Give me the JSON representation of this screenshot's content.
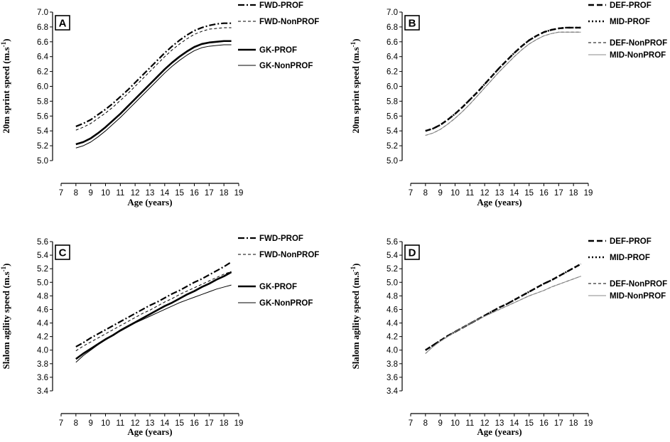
{
  "figure": {
    "xlabel": "Age (years)",
    "xticks": [
      7,
      8,
      9,
      10,
      11,
      12,
      13,
      14,
      15,
      16,
      17,
      18,
      19
    ]
  },
  "chart_data": [
    {
      "id": "A",
      "type": "line",
      "panel_label": "A",
      "ylabel": "20m sprint speed (m.s",
      "ylabel_sup": "-1",
      "ylabel_close": ")",
      "xlabel": "Age (years)",
      "xlim": [
        7,
        19
      ],
      "ylim": [
        5.0,
        7.0
      ],
      "yticks": [
        "5.0",
        "5.2",
        "5.4",
        "5.6",
        "5.8",
        "6.0",
        "6.2",
        "6.4",
        "6.6",
        "6.8",
        "7.0"
      ],
      "x": [
        8,
        8.5,
        9,
        9.5,
        10,
        10.5,
        11,
        11.5,
        12,
        12.5,
        13,
        13.5,
        14,
        14.5,
        15,
        15.5,
        16,
        16.5,
        17,
        17.5,
        18,
        18.5
      ],
      "series": [
        {
          "name": "FWD-PROF",
          "style": "dashdot-bold",
          "values": [
            5.46,
            5.5,
            5.55,
            5.62,
            5.69,
            5.77,
            5.86,
            5.95,
            6.05,
            6.15,
            6.25,
            6.35,
            6.45,
            6.54,
            6.62,
            6.69,
            6.75,
            6.79,
            6.82,
            6.84,
            6.85,
            6.85
          ]
        },
        {
          "name": "FWD-NonPROF",
          "style": "dashed-thin",
          "values": [
            5.41,
            5.45,
            5.5,
            5.57,
            5.64,
            5.72,
            5.81,
            5.9,
            6.0,
            6.1,
            6.2,
            6.3,
            6.4,
            6.49,
            6.57,
            6.64,
            6.7,
            6.74,
            6.77,
            6.78,
            6.79,
            6.79
          ]
        },
        {
          "name": "GK-PROF",
          "style": "solid-bold",
          "values": [
            5.22,
            5.25,
            5.3,
            5.37,
            5.45,
            5.54,
            5.63,
            5.73,
            5.83,
            5.93,
            6.03,
            6.13,
            6.23,
            6.32,
            6.4,
            6.47,
            6.53,
            6.57,
            6.59,
            6.6,
            6.61,
            6.61
          ]
        },
        {
          "name": "GK-NonPROF",
          "style": "solid-thin",
          "values": [
            5.17,
            5.2,
            5.25,
            5.32,
            5.4,
            5.49,
            5.58,
            5.68,
            5.78,
            5.88,
            5.98,
            6.08,
            6.18,
            6.27,
            6.35,
            6.42,
            6.48,
            6.52,
            6.54,
            6.55,
            6.56,
            6.56
          ]
        }
      ]
    },
    {
      "id": "B",
      "type": "line",
      "panel_label": "B",
      "ylabel": "20m sprint speed (m.s",
      "ylabel_sup": "-1",
      "ylabel_close": ")",
      "xlabel": "Age (years)",
      "xlim": [
        7,
        19
      ],
      "ylim": [
        5.0,
        7.0
      ],
      "yticks": [
        "5.0",
        "5.2",
        "5.4",
        "5.6",
        "5.8",
        "6.0",
        "6.2",
        "6.4",
        "6.6",
        "6.8",
        "7.0"
      ],
      "x": [
        8,
        8.5,
        9,
        9.5,
        10,
        10.5,
        11,
        11.5,
        12,
        12.5,
        13,
        13.5,
        14,
        14.5,
        15,
        15.5,
        16,
        16.5,
        17,
        17.5,
        18,
        18.5
      ],
      "series": [
        {
          "name": "DEF-PROF",
          "style": "dashed-bold",
          "values": [
            5.4,
            5.43,
            5.48,
            5.55,
            5.63,
            5.72,
            5.82,
            5.92,
            6.03,
            6.14,
            6.25,
            6.35,
            6.45,
            6.54,
            6.62,
            6.68,
            6.73,
            6.76,
            6.78,
            6.79,
            6.79,
            6.79
          ]
        },
        {
          "name": "MID-PROF",
          "style": "dotted-bold",
          "values": [
            5.4,
            5.43,
            5.48,
            5.55,
            5.63,
            5.72,
            5.82,
            5.92,
            6.03,
            6.14,
            6.25,
            6.35,
            6.45,
            6.54,
            6.62,
            6.68,
            6.73,
            6.76,
            6.78,
            6.79,
            6.79,
            6.79
          ]
        },
        {
          "name": "DEF-NonPROF",
          "style": "dashed-thin",
          "values": [
            5.34,
            5.37,
            5.42,
            5.49,
            5.57,
            5.66,
            5.76,
            5.87,
            5.98,
            6.09,
            6.2,
            6.3,
            6.4,
            6.49,
            6.57,
            6.63,
            6.68,
            6.71,
            6.73,
            6.73,
            6.73,
            6.73
          ]
        },
        {
          "name": "MID-NonPROF",
          "style": "solid-grey",
          "values": [
            5.34,
            5.37,
            5.42,
            5.49,
            5.57,
            5.66,
            5.76,
            5.87,
            5.98,
            6.09,
            6.2,
            6.3,
            6.4,
            6.49,
            6.57,
            6.63,
            6.68,
            6.71,
            6.73,
            6.73,
            6.73,
            6.73
          ]
        }
      ]
    },
    {
      "id": "C",
      "type": "line",
      "panel_label": "C",
      "ylabel": "Slalom agility speed (m.s",
      "ylabel_sup": "-1",
      "ylabel_close": ")",
      "xlabel": "Age (years)",
      "xlim": [
        7,
        19
      ],
      "ylim": [
        3.4,
        5.6
      ],
      "yticks": [
        "3.4",
        "3.6",
        "3.8",
        "4.0",
        "4.2",
        "4.4",
        "4.6",
        "4.8",
        "5.0",
        "5.2",
        "5.4",
        "5.6"
      ],
      "x": [
        8,
        8.5,
        9,
        9.5,
        10,
        10.5,
        11,
        11.5,
        12,
        12.5,
        13,
        13.5,
        14,
        14.5,
        15,
        15.5,
        16,
        16.5,
        17,
        17.5,
        18,
        18.5
      ],
      "series": [
        {
          "name": "FWD-PROF",
          "style": "dashdot-bold",
          "values": [
            4.05,
            4.11,
            4.18,
            4.24,
            4.3,
            4.36,
            4.42,
            4.48,
            4.54,
            4.6,
            4.66,
            4.71,
            4.77,
            4.83,
            4.88,
            4.94,
            5.0,
            5.05,
            5.11,
            5.17,
            5.23,
            5.3
          ]
        },
        {
          "name": "FWD-NonPROF",
          "style": "dashed-thin",
          "values": [
            3.99,
            4.06,
            4.12,
            4.18,
            4.24,
            4.3,
            4.36,
            4.42,
            4.48,
            4.54,
            4.59,
            4.65,
            4.71,
            4.76,
            4.82,
            4.87,
            4.92,
            4.97,
            5.02,
            5.07,
            5.12,
            5.16
          ]
        },
        {
          "name": "GK-PROF",
          "style": "solid-bold",
          "values": [
            3.87,
            3.95,
            4.02,
            4.09,
            4.16,
            4.22,
            4.29,
            4.35,
            4.41,
            4.47,
            4.53,
            4.59,
            4.65,
            4.7,
            4.76,
            4.82,
            4.87,
            4.93,
            4.98,
            5.04,
            5.09,
            5.15
          ]
        },
        {
          "name": "GK-NonPROF",
          "style": "solid-thin",
          "values": [
            3.82,
            3.92,
            4.0,
            4.08,
            4.15,
            4.22,
            4.28,
            4.34,
            4.4,
            4.45,
            4.5,
            4.55,
            4.6,
            4.65,
            4.7,
            4.74,
            4.78,
            4.82,
            4.86,
            4.9,
            4.93,
            4.96
          ]
        }
      ]
    },
    {
      "id": "D",
      "type": "line",
      "panel_label": "D",
      "ylabel": "Slalom agility speed (m.s",
      "ylabel_sup": "-1",
      "ylabel_close": ")",
      "xlabel": "Age (years)",
      "xlim": [
        7,
        19
      ],
      "ylim": [
        3.4,
        5.6
      ],
      "yticks": [
        "3.4",
        "3.6",
        "3.8",
        "4.0",
        "4.2",
        "4.4",
        "4.6",
        "4.8",
        "5.0",
        "5.2",
        "5.4",
        "5.6"
      ],
      "x": [
        8,
        8.5,
        9,
        9.5,
        10,
        10.5,
        11,
        11.5,
        12,
        12.5,
        13,
        13.5,
        14,
        14.5,
        15,
        15.5,
        16,
        16.5,
        17,
        17.5,
        18,
        18.5
      ],
      "series": [
        {
          "name": "DEF-PROF",
          "style": "dashed-bold",
          "values": [
            4.0,
            4.07,
            4.14,
            4.21,
            4.27,
            4.33,
            4.39,
            4.45,
            4.51,
            4.57,
            4.63,
            4.68,
            4.74,
            4.8,
            4.86,
            4.92,
            4.98,
            5.03,
            5.09,
            5.15,
            5.21,
            5.27
          ]
        },
        {
          "name": "MID-PROF",
          "style": "dotted-bold",
          "values": [
            4.0,
            4.07,
            4.14,
            4.21,
            4.27,
            4.33,
            4.39,
            4.45,
            4.51,
            4.57,
            4.63,
            4.68,
            4.74,
            4.8,
            4.86,
            4.92,
            4.98,
            5.03,
            5.09,
            5.15,
            5.21,
            5.27
          ]
        },
        {
          "name": "DEF-NonPROF",
          "style": "dashed-thin",
          "values": [
            3.95,
            4.05,
            4.13,
            4.2,
            4.27,
            4.33,
            4.39,
            4.45,
            4.5,
            4.55,
            4.6,
            4.65,
            4.7,
            4.75,
            4.8,
            4.84,
            4.88,
            4.93,
            4.97,
            5.01,
            5.05,
            5.09
          ]
        },
        {
          "name": "MID-NonPROF",
          "style": "solid-grey",
          "values": [
            3.95,
            4.05,
            4.13,
            4.2,
            4.27,
            4.33,
            4.39,
            4.45,
            4.5,
            4.55,
            4.6,
            4.65,
            4.7,
            4.75,
            4.8,
            4.84,
            4.88,
            4.93,
            4.97,
            5.01,
            5.05,
            5.09
          ]
        }
      ]
    }
  ]
}
